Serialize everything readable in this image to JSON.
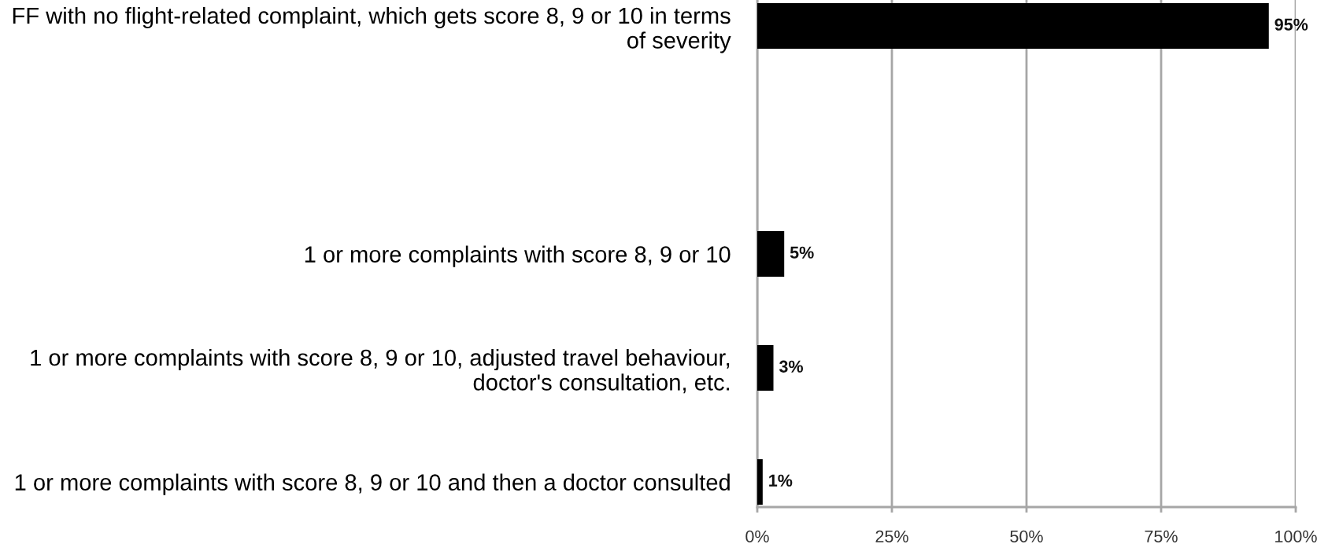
{
  "chart_data": {
    "type": "bar",
    "orientation": "horizontal",
    "categories": [
      "FF with no flight-related complaint, which gets score 8, 9 or 10 in terms\nof severity",
      null,
      "1 or more complaints with score 8, 9 or 10",
      "1 or more complaints with score 8, 9 or 10, adjusted travel behaviour,\ndoctor's consultation, etc.",
      "1 or more complaints with score 8, 9 or 10 and then a doctor consulted"
    ],
    "values": [
      95,
      null,
      5,
      3,
      1
    ],
    "value_labels": [
      "95%",
      null,
      "5%",
      "3%",
      "1%"
    ],
    "color": "#000000",
    "xlim": [
      0,
      100
    ],
    "xticks": [
      {
        "value": 0,
        "label": "0%"
      },
      {
        "value": 25,
        "label": "25%"
      },
      {
        "value": 50,
        "label": "50%"
      },
      {
        "value": 75,
        "label": "75%"
      },
      {
        "value": 100,
        "label": "100%"
      }
    ],
    "grid": "x"
  }
}
